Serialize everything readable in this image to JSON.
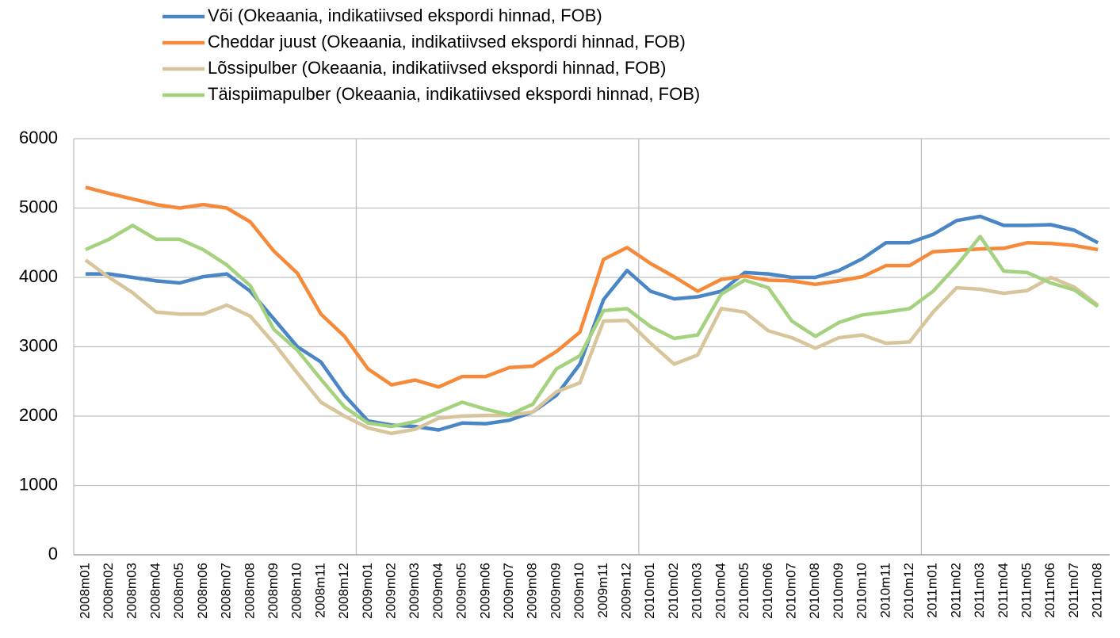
{
  "chart_data": {
    "type": "line",
    "categories": [
      "2008m01",
      "2008m02",
      "2008m03",
      "2008m04",
      "2008m05",
      "2008m06",
      "2008m07",
      "2008m08",
      "2008m09",
      "2008m10",
      "2008m11",
      "2008m12",
      "2009m01",
      "2009m02",
      "2009m03",
      "2009m04",
      "2009m05",
      "2009m06",
      "2009m07",
      "2009m08",
      "2009m09",
      "2009m10",
      "2009m11",
      "2009m12",
      "2010m01",
      "2010m02",
      "2010m03",
      "2010m04",
      "2010m05",
      "2010m06",
      "2010m07",
      "2010m08",
      "2010m09",
      "2010m10",
      "2010m11",
      "2010m12",
      "2011m01",
      "2011m02",
      "2011m03",
      "2011m04",
      "2011m05",
      "2011m06",
      "2011m07",
      "2011m08"
    ],
    "series": [
      {
        "name": "Või (Okeaania, indikatiivsed ekspordi hinnad, FOB)",
        "color": "#4a86c6",
        "values": [
          4050,
          4050,
          4000,
          3950,
          3920,
          4010,
          4050,
          3800,
          3400,
          3000,
          2780,
          2300,
          1930,
          1870,
          1850,
          1800,
          1900,
          1890,
          1940,
          2060,
          2300,
          2750,
          3680,
          4100,
          3800,
          3690,
          3720,
          3800,
          4070,
          4050,
          4000,
          4000,
          4100,
          4270,
          4500,
          4500,
          4620,
          4820,
          4880,
          4750,
          4750,
          4760,
          4680,
          4500
        ]
      },
      {
        "name": "Cheddar juust (Okeaania, indikatiivsed ekspordi hinnad, FOB)",
        "color": "#f58b3a",
        "values": [
          5300,
          5210,
          5130,
          5050,
          5000,
          5050,
          5000,
          4800,
          4380,
          4060,
          3470,
          3150,
          2680,
          2450,
          2520,
          2420,
          2570,
          2570,
          2700,
          2720,
          2930,
          3210,
          4260,
          4430,
          4200,
          4010,
          3800,
          3970,
          4020,
          3960,
          3950,
          3900,
          3950,
          4010,
          4170,
          4170,
          4370,
          4390,
          4410,
          4420,
          4500,
          4490,
          4460,
          4400
        ]
      },
      {
        "name": "Lõssipulber (Okeaania, indikatiivsed ekspordi hinnad, FOB)",
        "color": "#d8c59c",
        "values": [
          4250,
          4000,
          3780,
          3500,
          3470,
          3470,
          3600,
          3440,
          3050,
          2620,
          2200,
          2000,
          1830,
          1750,
          1810,
          1970,
          2000,
          2010,
          2010,
          2060,
          2350,
          2480,
          3370,
          3380,
          3050,
          2750,
          2880,
          3550,
          3500,
          3230,
          3130,
          2980,
          3130,
          3170,
          3050,
          3070,
          3500,
          3850,
          3830,
          3770,
          3810,
          4000,
          3860,
          3600
        ]
      },
      {
        "name": "Täispiimapulber (Okeaania, indikatiivsed ekspordi hinnad, FOB)",
        "color": "#a5d27e",
        "values": [
          4400,
          4550,
          4750,
          4550,
          4550,
          4400,
          4180,
          3880,
          3250,
          2950,
          2530,
          2130,
          1900,
          1850,
          1920,
          2060,
          2200,
          2100,
          2020,
          2170,
          2680,
          2870,
          3520,
          3550,
          3290,
          3120,
          3170,
          3760,
          3960,
          3850,
          3370,
          3150,
          3350,
          3460,
          3500,
          3550,
          3800,
          4170,
          4590,
          4090,
          4070,
          3920,
          3820,
          3580
        ]
      }
    ],
    "ylim": [
      0,
      6000
    ],
    "yticks": [
      0,
      1000,
      2000,
      3000,
      4000,
      5000,
      6000
    ],
    "grid": true
  }
}
